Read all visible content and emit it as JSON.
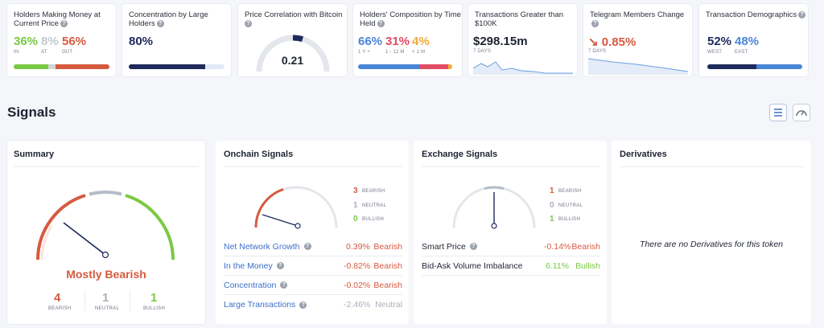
{
  "metrics": [
    {
      "title": "Holders Making Money at Current Price",
      "values": [
        "36%",
        "8%",
        "56%"
      ],
      "labels": [
        "IN",
        "AT",
        "OUT"
      ],
      "fractions": [
        0.36,
        0.08,
        0.56
      ]
    },
    {
      "title": "Concentration by Large Holders",
      "value": "80%",
      "fraction": 0.8
    },
    {
      "title": "Price Correlation with Bitcoin",
      "value": "0.21"
    },
    {
      "title": "Holders' Composition by Time Held",
      "values": [
        "66%",
        "31%",
        "4%"
      ],
      "labels": [
        "1 Y +",
        "1 - 12 M",
        "< 1 M"
      ],
      "fractions": [
        0.66,
        0.31,
        0.04
      ]
    },
    {
      "title": "Transactions Greater than $100K",
      "value": "$298.15m",
      "sub": "7 DAYS"
    },
    {
      "title": "Telegram Members Change",
      "value": "0.85%",
      "sub": "7 DAYS",
      "arrow": "↘"
    },
    {
      "title": "Transaction Demographics",
      "values": [
        "52%",
        "48%"
      ],
      "labels": [
        "WEST",
        "EAST"
      ],
      "fractions": [
        0.52,
        0.48
      ]
    }
  ],
  "signals_heading": "Signals",
  "summary": {
    "title": "Summary",
    "verdict": "Mostly Bearish",
    "counts": [
      {
        "n": "4",
        "label": "BEARISH"
      },
      {
        "n": "1",
        "label": "NEUTRAL"
      },
      {
        "n": "1",
        "label": "BULLISH"
      }
    ]
  },
  "onchain": {
    "title": "Onchain Signals",
    "counts": [
      {
        "n": "3",
        "label": "BEARISH"
      },
      {
        "n": "1",
        "label": "NEUTRAL"
      },
      {
        "n": "0",
        "label": "BULLISH"
      }
    ],
    "rows": [
      {
        "label": "Net Network Growth",
        "pct": "0.39%",
        "verdict": "Bearish"
      },
      {
        "label": "In the Money",
        "pct": "-0.82%",
        "verdict": "Bearish"
      },
      {
        "label": "Concentration",
        "pct": "-0.02%",
        "verdict": "Bearish"
      },
      {
        "label": "Large Transactions",
        "pct": "-2.46%",
        "verdict": "Neutral"
      }
    ]
  },
  "exchange": {
    "title": "Exchange Signals",
    "counts": [
      {
        "n": "1",
        "label": "BEARISH"
      },
      {
        "n": "0",
        "label": "NEUTRAL"
      },
      {
        "n": "1",
        "label": "BULLISH"
      }
    ],
    "rows": [
      {
        "label": "Smart Price",
        "pct": "-0.14%",
        "verdict": "Bearish"
      },
      {
        "label": "Bid-Ask Volume Imbalance",
        "pct": "6.11%",
        "verdict": "Bullish"
      }
    ]
  },
  "derivatives": {
    "title": "Derivatives",
    "empty": "There are no Derivatives for this token"
  },
  "colors": {
    "bearish": "#d65a3f",
    "neutral": "#a9b0ba",
    "bullish": "#7ac943",
    "accent": "#4a85d6",
    "navy": "#1e2a5c"
  },
  "icons": [
    "help-icon",
    "list-view-icon",
    "gauge-view-icon",
    "arrow-down-right-icon"
  ]
}
